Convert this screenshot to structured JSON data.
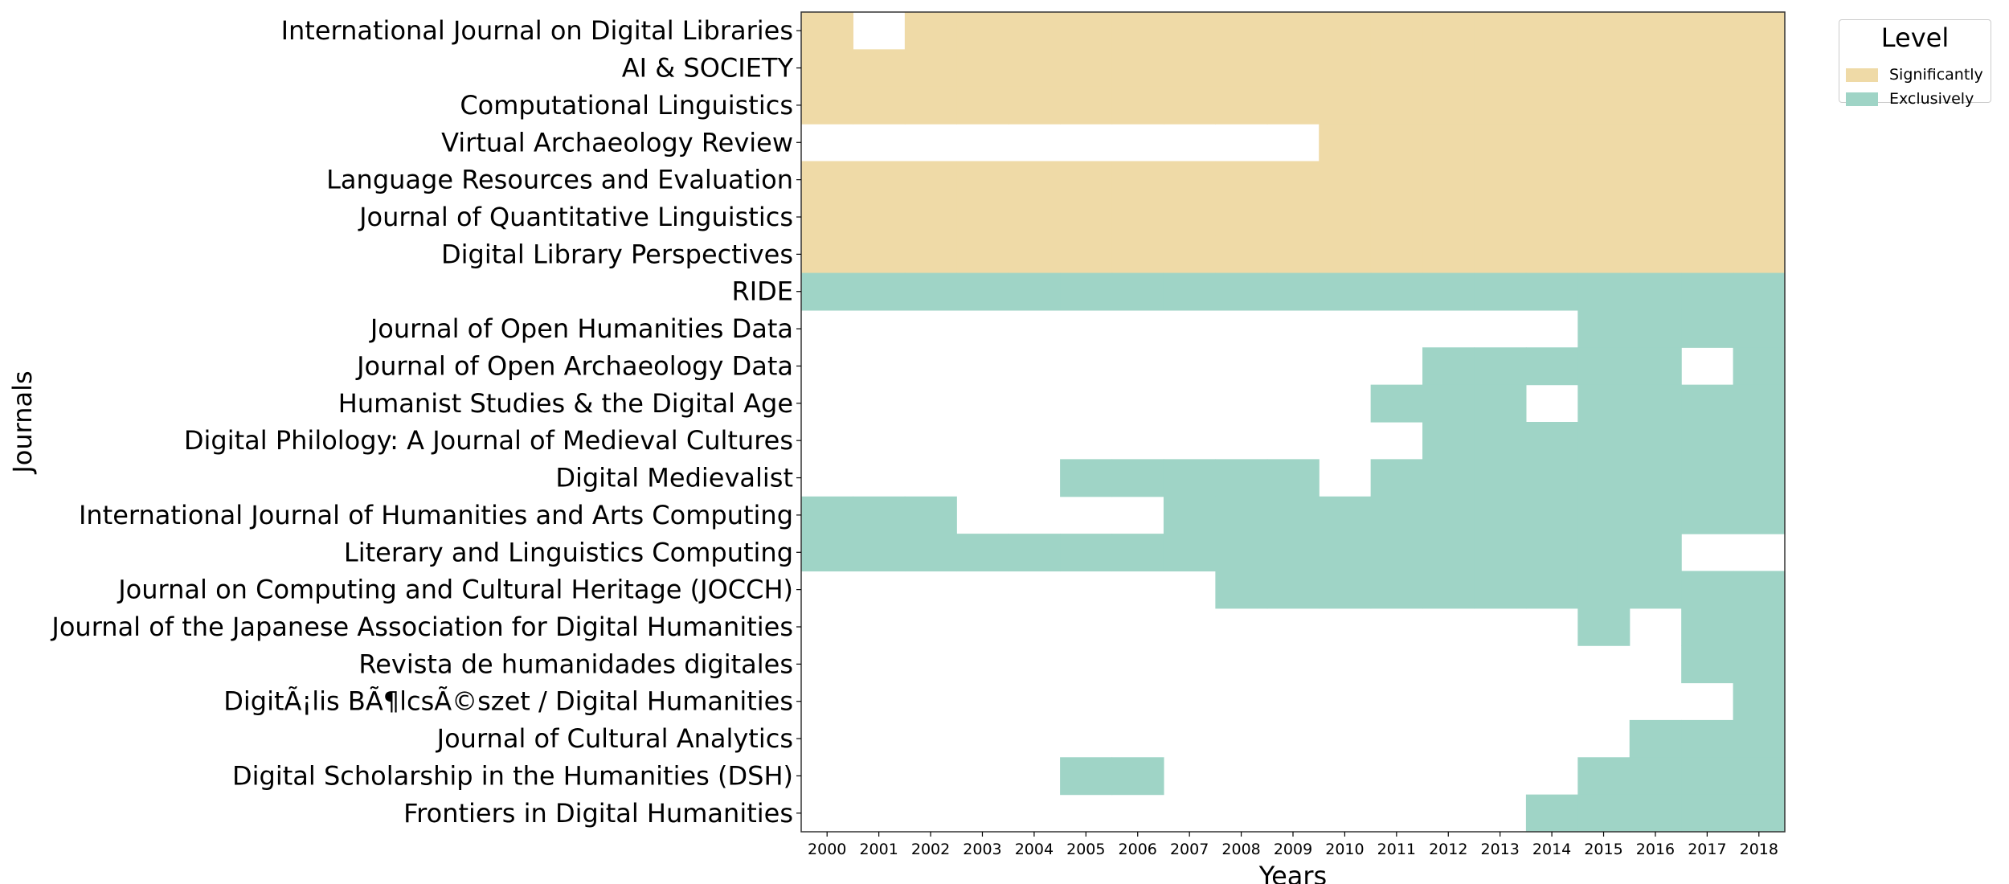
{
  "chart_data": {
    "type": "heatmap",
    "xlabel": "Years",
    "ylabel": "Journals",
    "years": [
      "2000",
      "2001",
      "2002",
      "2003",
      "2004",
      "2005",
      "2006",
      "2007",
      "2008",
      "2009",
      "2010",
      "2011",
      "2012",
      "2013",
      "2014",
      "2015",
      "2016",
      "2017",
      "2018"
    ],
    "legend": {
      "title": "Level",
      "placement": "top-right, outside plot",
      "items": [
        {
          "label": "Significantly",
          "color": "#efdaa7"
        },
        {
          "label": "Exclusively",
          "color": "#9fd4c6"
        }
      ]
    },
    "journals": [
      {
        "name": "International Journal on Digital Libraries",
        "level": "Significantly",
        "years": [
          "2000",
          "2002",
          "2003",
          "2004",
          "2005",
          "2006",
          "2007",
          "2008",
          "2009",
          "2010",
          "2011",
          "2012",
          "2013",
          "2014",
          "2015",
          "2016",
          "2017",
          "2018"
        ]
      },
      {
        "name": "AI & SOCIETY",
        "level": "Significantly",
        "years": [
          "2000",
          "2001",
          "2002",
          "2003",
          "2004",
          "2005",
          "2006",
          "2007",
          "2008",
          "2009",
          "2010",
          "2011",
          "2012",
          "2013",
          "2014",
          "2015",
          "2016",
          "2017",
          "2018"
        ]
      },
      {
        "name": "Computational Linguistics",
        "level": "Significantly",
        "years": [
          "2000",
          "2001",
          "2002",
          "2003",
          "2004",
          "2005",
          "2006",
          "2007",
          "2008",
          "2009",
          "2010",
          "2011",
          "2012",
          "2013",
          "2014",
          "2015",
          "2016",
          "2017",
          "2018"
        ]
      },
      {
        "name": "Virtual Archaeology Review",
        "level": "Significantly",
        "years": [
          "2010",
          "2011",
          "2012",
          "2013",
          "2014",
          "2015",
          "2016",
          "2017",
          "2018"
        ]
      },
      {
        "name": "Language Resources and Evaluation",
        "level": "Significantly",
        "years": [
          "2000",
          "2001",
          "2002",
          "2003",
          "2004",
          "2005",
          "2006",
          "2007",
          "2008",
          "2009",
          "2010",
          "2011",
          "2012",
          "2013",
          "2014",
          "2015",
          "2016",
          "2017",
          "2018"
        ]
      },
      {
        "name": "Journal of Quantitative Linguistics",
        "level": "Significantly",
        "years": [
          "2000",
          "2001",
          "2002",
          "2003",
          "2004",
          "2005",
          "2006",
          "2007",
          "2008",
          "2009",
          "2010",
          "2011",
          "2012",
          "2013",
          "2014",
          "2015",
          "2016",
          "2017",
          "2018"
        ]
      },
      {
        "name": "Digital Library Perspectives",
        "level": "Significantly",
        "years": [
          "2000",
          "2001",
          "2002",
          "2003",
          "2004",
          "2005",
          "2006",
          "2007",
          "2008",
          "2009",
          "2010",
          "2011",
          "2012",
          "2013",
          "2014",
          "2015",
          "2016",
          "2017",
          "2018"
        ]
      },
      {
        "name": "RIDE",
        "level": "Exclusively",
        "years": [
          "2000",
          "2001",
          "2002",
          "2003",
          "2004",
          "2005",
          "2006",
          "2007",
          "2008",
          "2009",
          "2010",
          "2011",
          "2012",
          "2013",
          "2014",
          "2015",
          "2016",
          "2017",
          "2018"
        ]
      },
      {
        "name": "Journal of Open Humanities Data",
        "level": "Exclusively",
        "years": [
          "2015",
          "2016",
          "2017",
          "2018"
        ]
      },
      {
        "name": "Journal of Open Archaeology Data",
        "level": "Exclusively",
        "years": [
          "2012",
          "2013",
          "2014",
          "2015",
          "2016",
          "2018"
        ]
      },
      {
        "name": "Humanist Studies & the Digital Age",
        "level": "Exclusively",
        "years": [
          "2011",
          "2012",
          "2013",
          "2015",
          "2016",
          "2017",
          "2018"
        ]
      },
      {
        "name": "Digital Philology: A Journal of Medieval Cultures",
        "level": "Exclusively",
        "years": [
          "2012",
          "2013",
          "2014",
          "2015",
          "2016",
          "2017",
          "2018"
        ]
      },
      {
        "name": "Digital Medievalist",
        "level": "Exclusively",
        "years": [
          "2005",
          "2006",
          "2007",
          "2008",
          "2009",
          "2011",
          "2012",
          "2013",
          "2014",
          "2015",
          "2016",
          "2017",
          "2018"
        ]
      },
      {
        "name": "International Journal of Humanities and Arts Computing",
        "level": "Exclusively",
        "years": [
          "2000",
          "2001",
          "2002",
          "2007",
          "2008",
          "2009",
          "2010",
          "2011",
          "2012",
          "2013",
          "2014",
          "2015",
          "2016",
          "2017",
          "2018"
        ]
      },
      {
        "name": "Literary and Linguistics Computing",
        "level": "Exclusively",
        "years": [
          "2000",
          "2001",
          "2002",
          "2003",
          "2004",
          "2005",
          "2006",
          "2007",
          "2008",
          "2009",
          "2010",
          "2011",
          "2012",
          "2013",
          "2014",
          "2015",
          "2016"
        ]
      },
      {
        "name": "Journal on Computing and Cultural Heritage (JOCCH)",
        "level": "Exclusively",
        "years": [
          "2008",
          "2009",
          "2010",
          "2011",
          "2012",
          "2013",
          "2014",
          "2015",
          "2016",
          "2017",
          "2018"
        ]
      },
      {
        "name": "Journal of the Japanese Association for Digital Humanities",
        "level": "Exclusively",
        "years": [
          "2015",
          "2017",
          "2018"
        ]
      },
      {
        "name": "Revista de humanidades digitales",
        "level": "Exclusively",
        "years": [
          "2017",
          "2018"
        ]
      },
      {
        "name": "DigitÃ¡lis BÃ¶lcsÃ©szet / Digital Humanities",
        "level": "Exclusively",
        "years": [
          "2018"
        ]
      },
      {
        "name": "Journal of Cultural Analytics",
        "level": "Exclusively",
        "years": [
          "2016",
          "2017",
          "2018"
        ]
      },
      {
        "name": "Digital Scholarship in the Humanities (DSH)",
        "level": "Exclusively",
        "years": [
          "2005",
          "2006",
          "2015",
          "2016",
          "2017",
          "2018"
        ]
      },
      {
        "name": "Frontiers in Digital Humanities",
        "level": "Exclusively",
        "years": [
          "2014",
          "2015",
          "2016",
          "2017",
          "2018"
        ]
      }
    ]
  }
}
